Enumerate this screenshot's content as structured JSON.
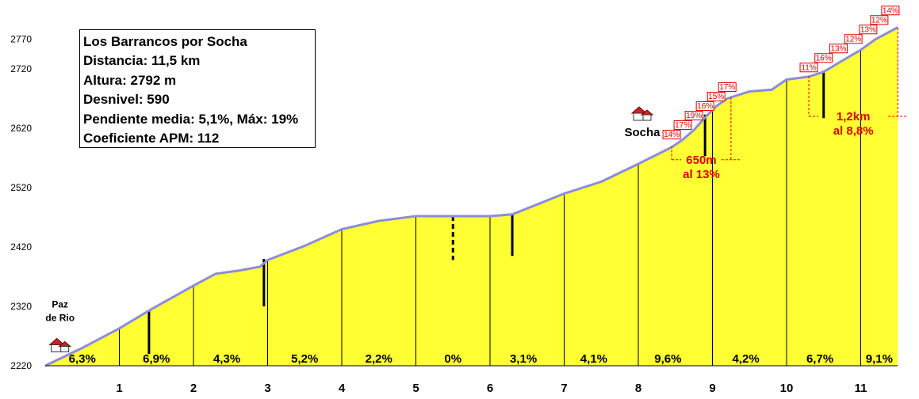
{
  "info": {
    "title": "Los Barrancos por Socha",
    "distance": "Distancia: 11,5 km",
    "altitude": "Altura: 2792 m",
    "elevation_gain": "Desnivel: 590",
    "slope": "Pendiente media: 5,1%, Máx: 19%",
    "coefficient": "Coeficiente APM: 112"
  },
  "colors": {
    "fill": "#ffff33",
    "profile_line": "#8c8cdc",
    "annotation": "#e00000",
    "house_roof": "#cc2222"
  },
  "chart_data": {
    "type": "area",
    "x_unit": "km",
    "y_unit": "m",
    "xlim": [
      0,
      11.5
    ],
    "ylim": [
      2220,
      2800
    ],
    "x_ticks": [
      "1",
      "2",
      "3",
      "4",
      "5",
      "6",
      "7",
      "8",
      "9",
      "10",
      "11"
    ],
    "y_ticks": [
      "2220",
      "2320",
      "2420",
      "2520",
      "2620",
      "2720",
      "2770"
    ],
    "profile": [
      {
        "x": 0,
        "y": 2220
      },
      {
        "x": 0.5,
        "y": 2250
      },
      {
        "x": 1,
        "y": 2283
      },
      {
        "x": 1.4,
        "y": 2313
      },
      {
        "x": 2,
        "y": 2355
      },
      {
        "x": 2.3,
        "y": 2375
      },
      {
        "x": 2.6,
        "y": 2380
      },
      {
        "x": 2.9,
        "y": 2387
      },
      {
        "x": 3,
        "y": 2398
      },
      {
        "x": 3.5,
        "y": 2422
      },
      {
        "x": 4,
        "y": 2450
      },
      {
        "x": 4.5,
        "y": 2464
      },
      {
        "x": 5,
        "y": 2472
      },
      {
        "x": 5.5,
        "y": 2472
      },
      {
        "x": 6,
        "y": 2472
      },
      {
        "x": 6.3,
        "y": 2475
      },
      {
        "x": 6.7,
        "y": 2495
      },
      {
        "x": 7,
        "y": 2510
      },
      {
        "x": 7.5,
        "y": 2530
      },
      {
        "x": 8,
        "y": 2560
      },
      {
        "x": 8.45,
        "y": 2588
      },
      {
        "x": 8.6,
        "y": 2601
      },
      {
        "x": 8.75,
        "y": 2617
      },
      {
        "x": 8.9,
        "y": 2638
      },
      {
        "x": 9.05,
        "y": 2657
      },
      {
        "x": 9.2,
        "y": 2670
      },
      {
        "x": 9.5,
        "y": 2682
      },
      {
        "x": 9.8,
        "y": 2685
      },
      {
        "x": 10,
        "y": 2702
      },
      {
        "x": 10.3,
        "y": 2707
      },
      {
        "x": 10.5,
        "y": 2715
      },
      {
        "x": 10.7,
        "y": 2730
      },
      {
        "x": 11,
        "y": 2752
      },
      {
        "x": 11.2,
        "y": 2770
      },
      {
        "x": 11.5,
        "y": 2790
      }
    ],
    "segment_grades": [
      {
        "label": "6,3%",
        "x": 0.5
      },
      {
        "label": "6,9%",
        "x": 1.5
      },
      {
        "label": "4,3%",
        "x": 2.45
      },
      {
        "label": "5,2%",
        "x": 3.5
      },
      {
        "label": "2,2%",
        "x": 4.5
      },
      {
        "label": "0%",
        "x": 5.5
      },
      {
        "label": "3,1%",
        "x": 6.45
      },
      {
        "label": "4,1%",
        "x": 7.4
      },
      {
        "label": "9,6%",
        "x": 8.4
      },
      {
        "label": "4,2%",
        "x": 9.45
      },
      {
        "label": "6,7%",
        "x": 10.45
      },
      {
        "label": "9,1%",
        "x": 11.25
      }
    ],
    "markers": [
      {
        "x": 1.4,
        "y_top": 2313,
        "y_bottom": 2240,
        "style": "solid"
      },
      {
        "x": 2.95,
        "y_top": 2400,
        "y_bottom": 2320,
        "style": "solid"
      },
      {
        "x": 5.5,
        "y_top": 2472,
        "y_bottom": 2398,
        "style": "dashed"
      },
      {
        "x": 6.3,
        "y_top": 2475,
        "y_bottom": 2405,
        "style": "solid"
      },
      {
        "x": 8.9,
        "y_top": 2643,
        "y_bottom": 2573,
        "style": "solid"
      },
      {
        "x": 10.5,
        "y_top": 2717,
        "y_bottom": 2637,
        "style": "solid"
      }
    ],
    "steep_grades": [
      {
        "label": "14%",
        "x": 8.45,
        "y": 2602
      },
      {
        "label": "17%",
        "x": 8.6,
        "y": 2618
      },
      {
        "label": "19%",
        "x": 8.75,
        "y": 2634
      },
      {
        "label": "16%",
        "x": 8.9,
        "y": 2650
      },
      {
        "label": "15%",
        "x": 9.05,
        "y": 2666
      },
      {
        "label": "17%",
        "x": 9.2,
        "y": 2682
      },
      {
        "label": "11%",
        "x": 10.3,
        "y": 2715
      },
      {
        "label": "16%",
        "x": 10.5,
        "y": 2731
      },
      {
        "label": "13%",
        "x": 10.7,
        "y": 2747
      },
      {
        "label": "12%",
        "x": 10.9,
        "y": 2763
      },
      {
        "label": "13%",
        "x": 11.1,
        "y": 2779
      },
      {
        "label": "12%",
        "x": 11.25,
        "y": 2795
      },
      {
        "label": "14%",
        "x": 11.4,
        "y": 2811
      }
    ],
    "climb_annotations": [
      {
        "line1": "650m",
        "line2": "al 13%",
        "x_start": 8.45,
        "x_end": 9.25,
        "y_from": 2590,
        "y_label": 2567
      },
      {
        "line1": "1,2km",
        "line2": "al 8,8%",
        "x_start": 10.3,
        "x_end": 11.5,
        "y_from": 2708,
        "y_label": 2640
      }
    ],
    "places": [
      {
        "name_line1": "Paz",
        "name_line2": "de Rio",
        "x": 0.2,
        "y_label": 2318,
        "y_icon": 2250
      },
      {
        "name_line1": "Socha",
        "name_line2": "",
        "x": 8.0,
        "y_label": 2607,
        "y_icon": 2640
      }
    ]
  }
}
